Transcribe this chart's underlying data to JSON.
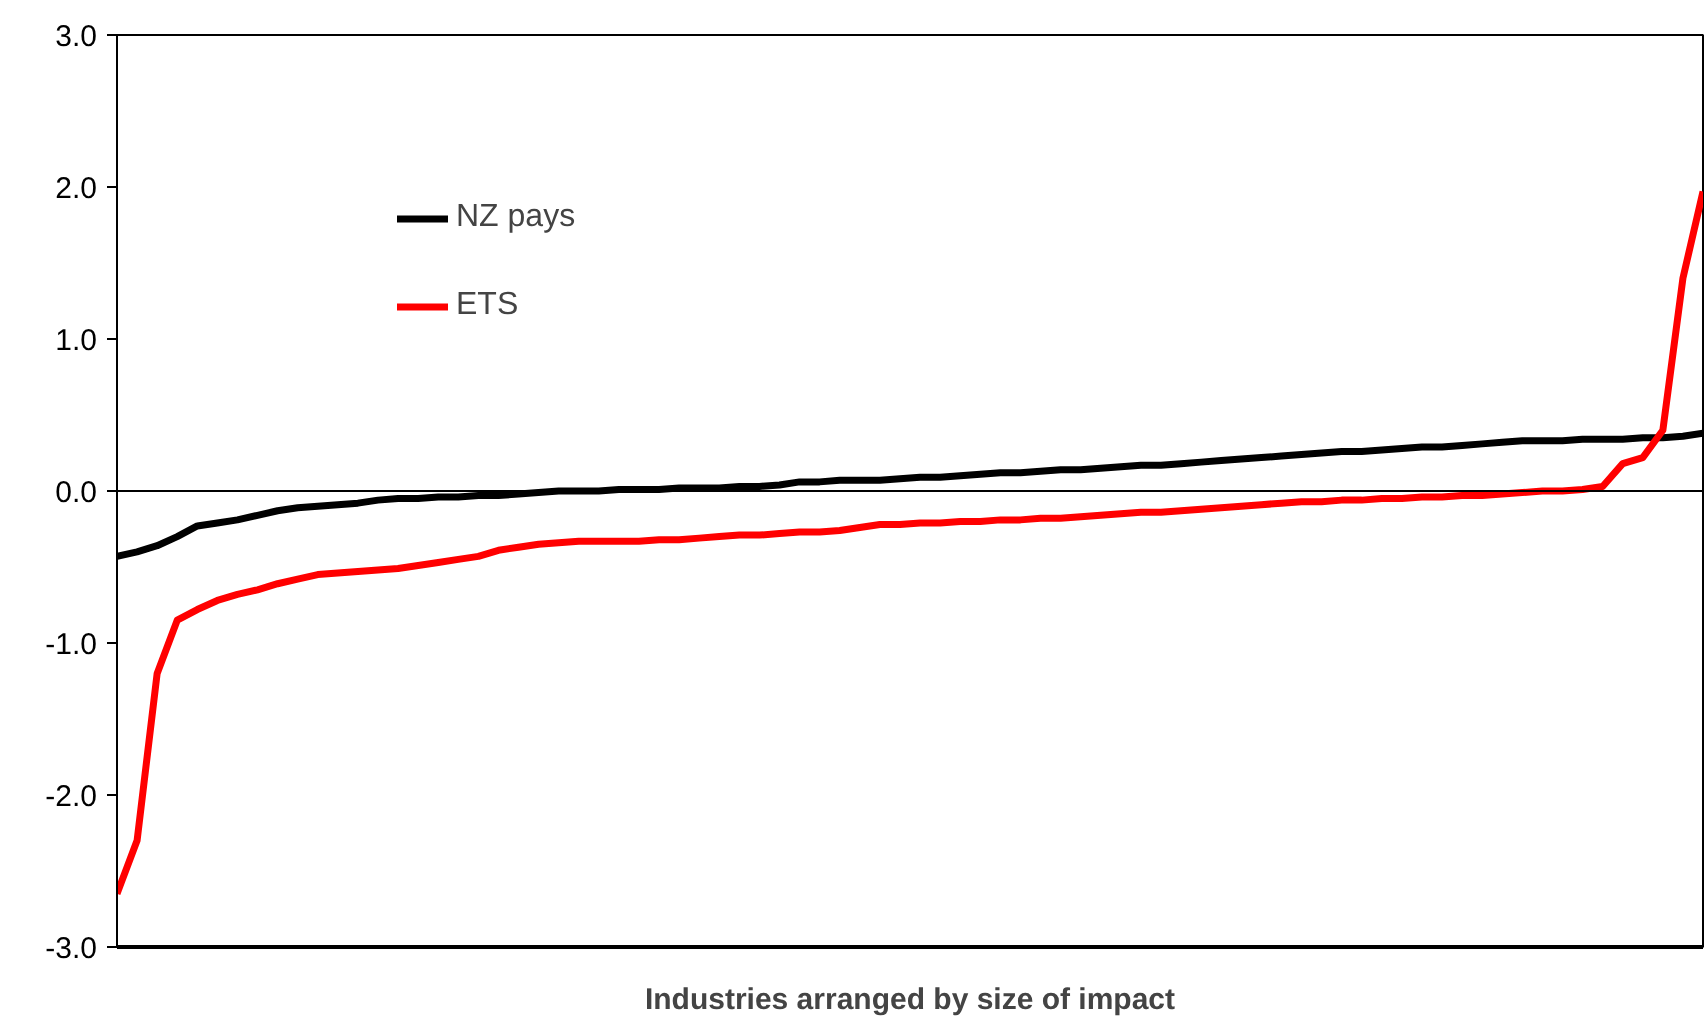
{
  "chart_data": {
    "type": "line",
    "xlabel": "Industries arranged by size of impact",
    "categories": [
      null,
      null,
      null,
      null,
      null,
      null,
      null,
      null,
      null,
      null,
      null,
      null,
      null,
      null,
      null,
      null,
      null,
      null,
      null,
      null,
      null,
      null,
      null,
      null,
      null,
      null,
      null,
      null,
      null,
      null,
      null,
      null,
      null,
      null,
      null,
      null,
      null,
      null,
      null,
      null,
      null,
      null,
      null,
      null,
      null,
      null,
      null,
      null,
      null,
      null,
      null,
      null,
      null,
      null,
      null,
      null,
      null,
      null,
      null,
      null,
      null,
      null,
      null,
      null,
      null,
      null,
      null,
      null,
      null,
      null,
      null,
      null,
      null,
      null,
      null,
      null,
      null,
      null,
      null,
      null
    ],
    "series": [
      {
        "name": "NZ pays",
        "color": "#000000",
        "values": [
          -0.43,
          -0.4,
          -0.36,
          -0.3,
          -0.23,
          -0.21,
          -0.19,
          -0.16,
          -0.13,
          -0.11,
          -0.1,
          -0.09,
          -0.08,
          -0.06,
          -0.05,
          -0.05,
          -0.04,
          -0.04,
          -0.03,
          -0.03,
          -0.02,
          -0.01,
          0.0,
          0.0,
          0.0,
          0.01,
          0.01,
          0.01,
          0.02,
          0.02,
          0.02,
          0.03,
          0.03,
          0.04,
          0.06,
          0.06,
          0.07,
          0.07,
          0.07,
          0.08,
          0.09,
          0.09,
          0.1,
          0.11,
          0.12,
          0.12,
          0.13,
          0.14,
          0.14,
          0.15,
          0.16,
          0.17,
          0.17,
          0.18,
          0.19,
          0.2,
          0.21,
          0.22,
          0.23,
          0.24,
          0.25,
          0.26,
          0.26,
          0.27,
          0.28,
          0.29,
          0.29,
          0.3,
          0.31,
          0.32,
          0.33,
          0.33,
          0.33,
          0.34,
          0.34,
          0.34,
          0.35,
          0.35,
          0.36,
          0.38
        ]
      },
      {
        "name": "ETS",
        "color": "#ff0000",
        "values": [
          -2.65,
          -2.3,
          -1.2,
          -0.85,
          -0.78,
          -0.72,
          -0.68,
          -0.65,
          -0.61,
          -0.58,
          -0.55,
          -0.54,
          -0.53,
          -0.52,
          -0.51,
          -0.49,
          -0.47,
          -0.45,
          -0.43,
          -0.39,
          -0.37,
          -0.35,
          -0.34,
          -0.33,
          -0.33,
          -0.33,
          -0.33,
          -0.32,
          -0.32,
          -0.31,
          -0.3,
          -0.29,
          -0.29,
          -0.28,
          -0.27,
          -0.27,
          -0.26,
          -0.24,
          -0.22,
          -0.22,
          -0.21,
          -0.21,
          -0.2,
          -0.2,
          -0.19,
          -0.19,
          -0.18,
          -0.18,
          -0.17,
          -0.16,
          -0.15,
          -0.14,
          -0.14,
          -0.13,
          -0.12,
          -0.11,
          -0.1,
          -0.09,
          -0.08,
          -0.07,
          -0.07,
          -0.06,
          -0.06,
          -0.05,
          -0.05,
          -0.04,
          -0.04,
          -0.03,
          -0.03,
          -0.02,
          -0.01,
          0.0,
          0.0,
          0.01,
          0.03,
          0.18,
          0.22,
          0.4,
          1.4,
          1.97
        ]
      }
    ],
    "ylim": [
      -3,
      3
    ],
    "yticks": [
      {
        "value": -3,
        "label": "-3.0"
      },
      {
        "value": -2,
        "label": "-2.0"
      },
      {
        "value": -1,
        "label": "-1.0"
      },
      {
        "value": 0,
        "label": "0.0"
      },
      {
        "value": 1,
        "label": "1.0"
      },
      {
        "value": 2,
        "label": "2.0"
      },
      {
        "value": 3,
        "label": "3.0"
      }
    ],
    "ref_lines": [
      {
        "axis": "y",
        "value": 0
      }
    ],
    "tick_labels": "y",
    "legend": "top left",
    "grid": false,
    "marker": "none",
    "line_style": "solid"
  }
}
